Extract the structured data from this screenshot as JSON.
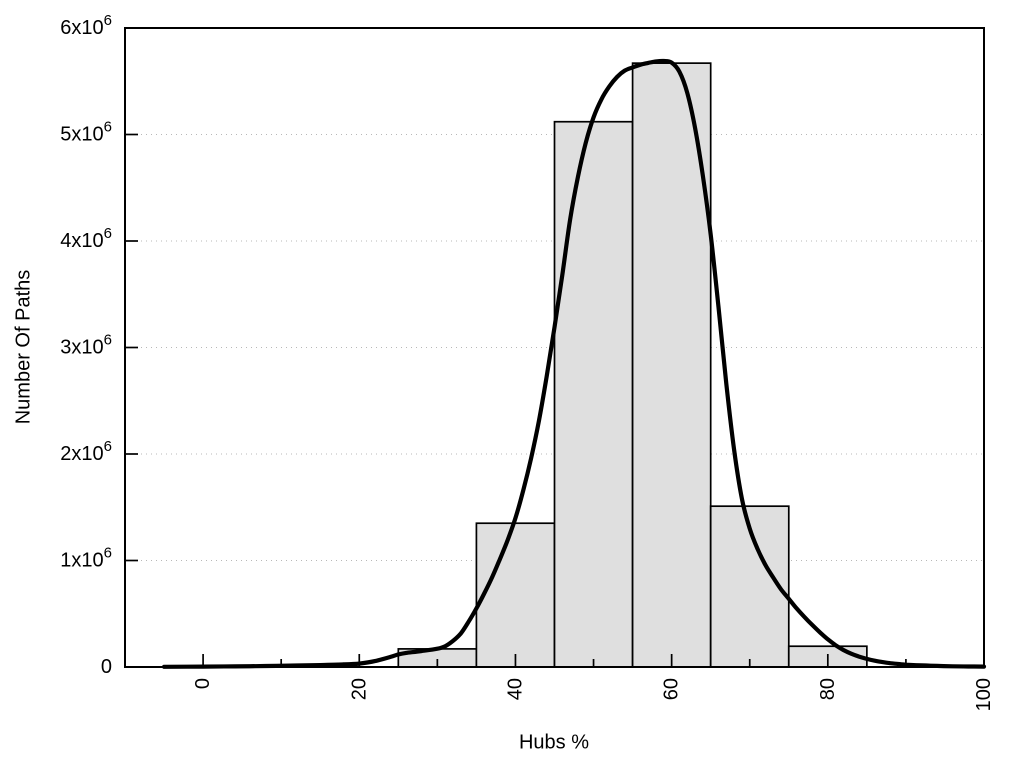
{
  "chart_data": {
    "type": "bar",
    "subtype": "histogram-with-fitted-line",
    "title": "",
    "xlabel": "Hubs %",
    "ylabel": "Number Of Paths",
    "xlim": [
      -10,
      100
    ],
    "ylim": [
      0,
      6000000
    ],
    "x_ticks": {
      "major": [
        0,
        20,
        40,
        60,
        80,
        100
      ],
      "major_labels": [
        "0",
        "20",
        "40",
        "60",
        "80",
        "100"
      ],
      "minor": [
        10,
        30,
        50,
        70,
        90
      ],
      "label_rotation_deg": -90
    },
    "y_ticks": [
      {
        "value": 0,
        "label": "0",
        "exponent": null
      },
      {
        "value": 1000000,
        "label": "1x10",
        "exponent": "6"
      },
      {
        "value": 2000000,
        "label": "2x10",
        "exponent": "6"
      },
      {
        "value": 3000000,
        "label": "3x10",
        "exponent": "6"
      },
      {
        "value": 4000000,
        "label": "4x10",
        "exponent": "6"
      },
      {
        "value": 5000000,
        "label": "5x10",
        "exponent": "6"
      },
      {
        "value": 6000000,
        "label": "6x10",
        "exponent": "6"
      }
    ],
    "grid": {
      "horizontal_at": [
        1000000,
        2000000,
        3000000,
        4000000,
        5000000
      ],
      "vertical": false,
      "style": "dotted"
    },
    "histogram": {
      "bin_width": 10,
      "bins": [
        {
          "x0": 25,
          "x1": 35,
          "count": 170000
        },
        {
          "x0": 35,
          "x1": 45,
          "count": 1350000
        },
        {
          "x0": 45,
          "x1": 55,
          "count": 5120000
        },
        {
          "x0": 55,
          "x1": 65,
          "count": 5670000
        },
        {
          "x0": 65,
          "x1": 75,
          "count": 1510000
        },
        {
          "x0": 75,
          "x1": 85,
          "count": 195000
        }
      ]
    },
    "fit_curve": {
      "peak": {
        "x": 59,
        "y": 5690000
      },
      "points": [
        [
          -5,
          2000
        ],
        [
          0,
          4000
        ],
        [
          4,
          6000
        ],
        [
          8,
          9000
        ],
        [
          12,
          14000
        ],
        [
          15,
          18000
        ],
        [
          18,
          24000
        ],
        [
          20,
          32000
        ],
        [
          22,
          55000
        ],
        [
          24,
          95000
        ],
        [
          25,
          118000
        ],
        [
          26,
          132000
        ],
        [
          28,
          150000
        ],
        [
          30,
          172000
        ],
        [
          31,
          195000
        ],
        [
          32,
          245000
        ],
        [
          33,
          315000
        ],
        [
          34,
          425000
        ],
        [
          35,
          550000
        ],
        [
          36,
          690000
        ],
        [
          37,
          840000
        ],
        [
          38,
          1010000
        ],
        [
          39,
          1190000
        ],
        [
          40,
          1400000
        ],
        [
          41,
          1660000
        ],
        [
          42,
          1960000
        ],
        [
          43,
          2310000
        ],
        [
          44,
          2730000
        ],
        [
          45,
          3190000
        ],
        [
          46,
          3680000
        ],
        [
          47,
          4200000
        ],
        [
          48,
          4600000
        ],
        [
          49,
          4920000
        ],
        [
          50,
          5160000
        ],
        [
          51,
          5330000
        ],
        [
          52,
          5450000
        ],
        [
          53,
          5540000
        ],
        [
          54,
          5600000
        ],
        [
          55,
          5630000
        ],
        [
          56,
          5655000
        ],
        [
          57,
          5672000
        ],
        [
          58,
          5686000
        ],
        [
          59,
          5690000
        ],
        [
          60,
          5675000
        ],
        [
          61,
          5590000
        ],
        [
          62,
          5390000
        ],
        [
          63,
          5060000
        ],
        [
          64,
          4610000
        ],
        [
          65,
          4060000
        ],
        [
          66,
          3380000
        ],
        [
          67,
          2660000
        ],
        [
          68,
          2040000
        ],
        [
          69,
          1580000
        ],
        [
          70,
          1300000
        ],
        [
          71,
          1110000
        ],
        [
          72,
          960000
        ],
        [
          73,
          840000
        ],
        [
          74,
          730000
        ],
        [
          75,
          640000
        ],
        [
          76,
          550000
        ],
        [
          77,
          470000
        ],
        [
          78,
          395000
        ],
        [
          79,
          325000
        ],
        [
          80,
          260000
        ],
        [
          81,
          205000
        ],
        [
          82,
          160000
        ],
        [
          83,
          125000
        ],
        [
          84,
          98000
        ],
        [
          85,
          76000
        ],
        [
          86,
          59000
        ],
        [
          87,
          46000
        ],
        [
          88,
          36000
        ],
        [
          89,
          28000
        ],
        [
          90,
          22000
        ],
        [
          92,
          15000
        ],
        [
          94,
          10000
        ],
        [
          96,
          7000
        ],
        [
          98,
          5000
        ],
        [
          100,
          4000
        ]
      ]
    },
    "colors": {
      "background": "#ffffff",
      "bar_fill": "#dfdfdf",
      "bar_stroke": "#000000",
      "curve": "#000000",
      "grid": "#b8b8b8",
      "text": "#000000"
    },
    "legend": null
  }
}
